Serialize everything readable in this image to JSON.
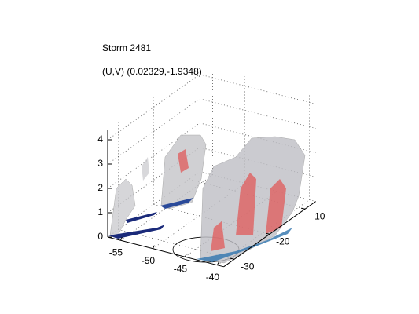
{
  "chart_data": {
    "type": "isosurface3d",
    "title": "Storm 2481",
    "subtitle": "(U,V) (0.02329,-1.9348)",
    "xlim": [
      -57,
      -39
    ],
    "xticks": [
      -55,
      -50,
      -45,
      -40
    ],
    "ylim": [
      -33,
      -7
    ],
    "yticks": [
      -30,
      -20,
      -10
    ],
    "zlim": [
      0,
      4.4
    ],
    "zticks": [
      0,
      1,
      2,
      3,
      4
    ],
    "grid": true
  }
}
